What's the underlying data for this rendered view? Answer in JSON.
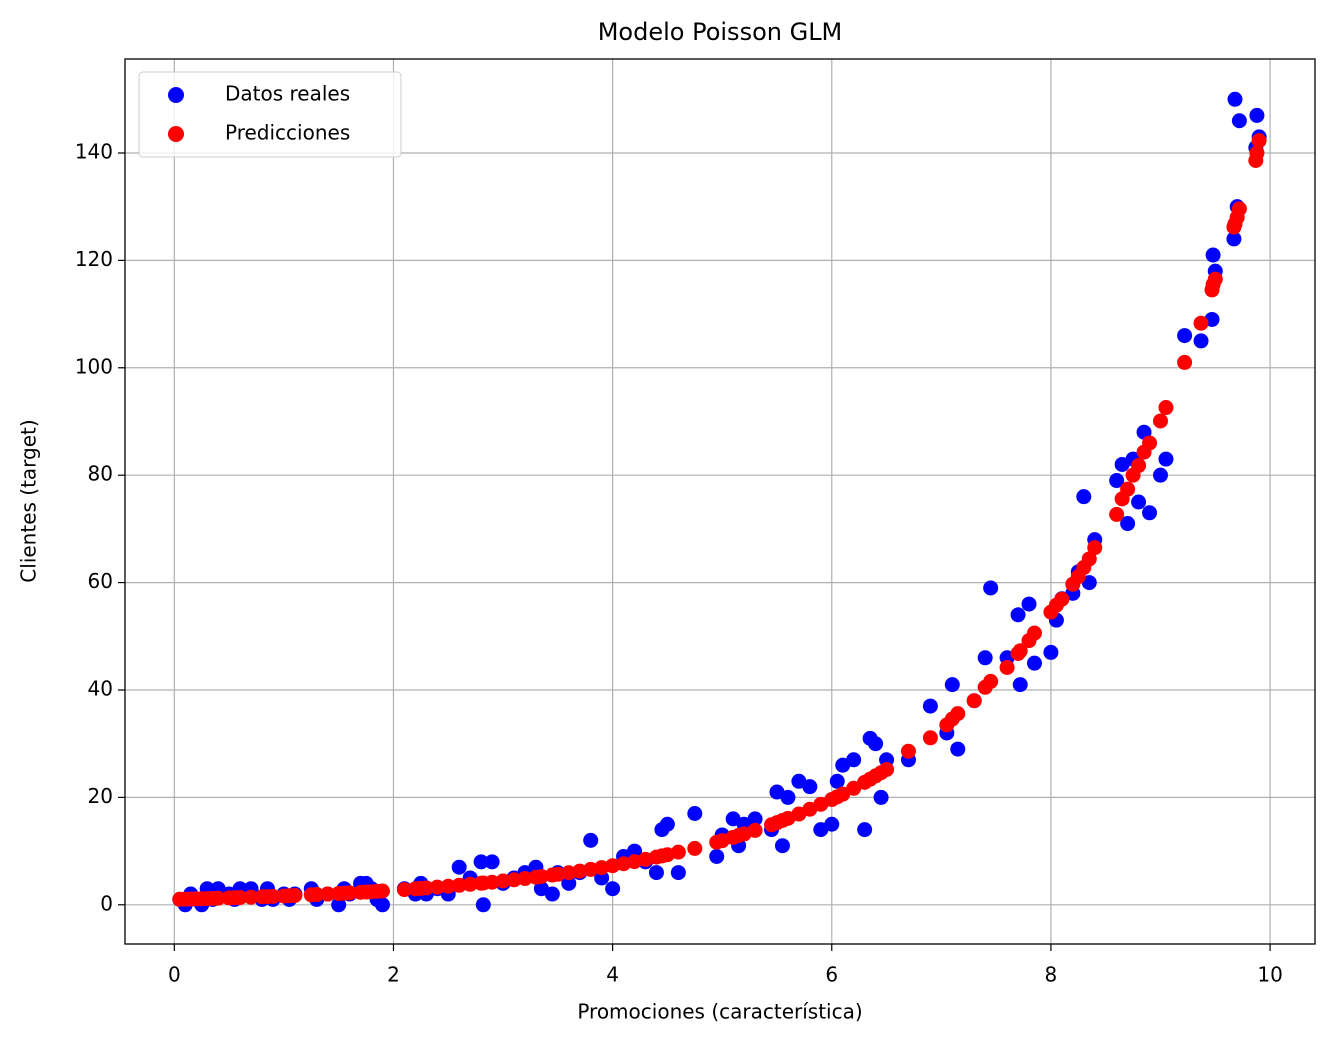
{
  "chart_data": {
    "type": "scatter",
    "title": "Modelo Poisson GLM",
    "xlabel": "Promociones (característica)",
    "ylabel": "Clientes (target)",
    "x": [
      0.05,
      0.1,
      0.15,
      0.2,
      0.25,
      0.3,
      0.35,
      0.4,
      0.5,
      0.55,
      0.6,
      0.7,
      0.8,
      0.85,
      0.9,
      1.0,
      1.05,
      1.1,
      1.25,
      1.3,
      1.4,
      1.5,
      1.55,
      1.6,
      1.7,
      1.75,
      1.8,
      1.85,
      1.9,
      2.1,
      2.2,
      2.25,
      2.3,
      2.4,
      2.5,
      2.6,
      2.7,
      2.8,
      2.82,
      2.9,
      3.0,
      3.1,
      3.2,
      3.3,
      3.35,
      3.45,
      3.5,
      3.6,
      3.7,
      3.8,
      3.9,
      4.0,
      4.1,
      4.2,
      4.3,
      4.4,
      4.45,
      4.5,
      4.6,
      4.75,
      4.95,
      5.0,
      5.1,
      5.15,
      5.2,
      5.3,
      5.45,
      5.5,
      5.55,
      5.6,
      5.7,
      5.8,
      5.9,
      6.0,
      6.05,
      6.1,
      6.2,
      6.3,
      6.35,
      6.4,
      6.45,
      6.5,
      6.7,
      6.9,
      7.05,
      7.1,
      7.15,
      7.3,
      7.4,
      7.45,
      7.6,
      7.7,
      7.72,
      7.8,
      7.85,
      8.0,
      8.05,
      8.1,
      8.2,
      8.25,
      8.3,
      8.35,
      8.4,
      8.6,
      8.65,
      8.7,
      8.75,
      8.8,
      8.85,
      8.9,
      9.0,
      9.05,
      9.22,
      9.37,
      9.47,
      9.48,
      9.5,
      9.67,
      9.68,
      9.7,
      9.72,
      9.87,
      9.88,
      9.9
    ],
    "series": [
      {
        "name": "Datos reales",
        "color": "#0000ff",
        "values": [
          1,
          0,
          2,
          1,
          0,
          3,
          1,
          3,
          2,
          1,
          3,
          3,
          1,
          3,
          1,
          2,
          1,
          2,
          3,
          1,
          2,
          0,
          3,
          2,
          4,
          4,
          3,
          1,
          0,
          3,
          2,
          4,
          2,
          3,
          2,
          7,
          5,
          8,
          0,
          8,
          4,
          5,
          6,
          7,
          3,
          2,
          6,
          4,
          6,
          12,
          5,
          3,
          9,
          10,
          8,
          6,
          14,
          15,
          6,
          17,
          9,
          13,
          16,
          11,
          15,
          16,
          14,
          21,
          11,
          20,
          23,
          22,
          14,
          15,
          23,
          26,
          27,
          14,
          31,
          30,
          20,
          27,
          27,
          37,
          32,
          41,
          29,
          38,
          46,
          59,
          46,
          54,
          41,
          56,
          45,
          47,
          53,
          57,
          58,
          62,
          76,
          60,
          68,
          79,
          82,
          71,
          83,
          75,
          88,
          73,
          80,
          83,
          106,
          105,
          109,
          121,
          118,
          124,
          150,
          130,
          146,
          141,
          147,
          143
        ]
      },
      {
        "name": "Predicciones",
        "color": "#ff0000",
        "values": [
          1.03,
          1.05,
          1.08,
          1.1,
          1.13,
          1.16,
          1.19,
          1.22,
          1.28,
          1.31,
          1.35,
          1.41,
          1.49,
          1.52,
          1.56,
          1.64,
          1.68,
          1.73,
          1.86,
          1.91,
          2.0,
          2.1,
          2.16,
          2.21,
          2.32,
          2.38,
          2.44,
          2.5,
          2.57,
          2.83,
          2.98,
          3.05,
          3.13,
          3.29,
          3.45,
          3.63,
          3.82,
          4.01,
          4.05,
          4.21,
          4.43,
          4.66,
          4.89,
          5.14,
          5.27,
          5.54,
          5.68,
          5.97,
          6.27,
          6.59,
          6.93,
          7.28,
          7.65,
          8.04,
          8.45,
          8.88,
          9.1,
          9.33,
          9.81,
          10.5,
          11.65,
          11.94,
          12.55,
          12.9,
          13.2,
          13.85,
          14.9,
          15.3,
          15.7,
          16.1,
          16.9,
          17.8,
          18.7,
          19.6,
          20.1,
          20.6,
          21.7,
          22.8,
          23.4,
          24.0,
          24.6,
          25.2,
          28.6,
          31.1,
          33.5,
          34.6,
          35.6,
          38.0,
          40.5,
          41.6,
          44.2,
          46.8,
          47.3,
          49.2,
          50.6,
          54.5,
          55.8,
          56.9,
          59.7,
          61.1,
          62.8,
          64.4,
          66.5,
          72.7,
          75.6,
          77.4,
          80.0,
          81.8,
          84.3,
          86.0,
          90.1,
          92.6,
          101,
          108.3,
          114.5,
          115.5,
          116.5,
          126.2,
          126.8,
          128.0,
          129.6,
          138.6,
          140,
          142.3
        ]
      }
    ],
    "xlim": [
      -0.45,
      10.41
    ],
    "ylim": [
      -7.3,
      157.5
    ],
    "xticks": [
      0,
      2,
      4,
      6,
      8,
      10
    ],
    "yticks": [
      0,
      20,
      40,
      60,
      80,
      100,
      120,
      140
    ],
    "grid": true,
    "legend": "upper left"
  }
}
